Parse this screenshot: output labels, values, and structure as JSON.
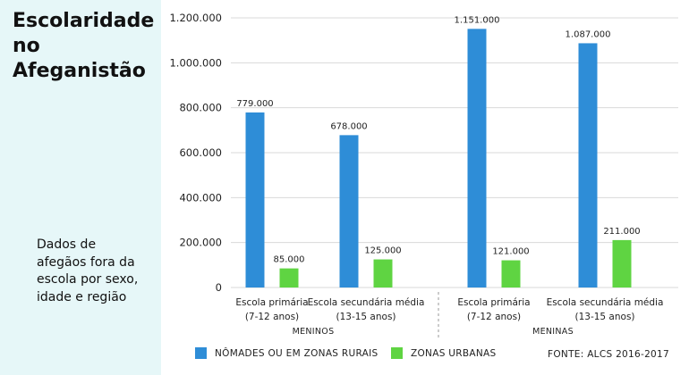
{
  "title": "Escolaridade no Afeganistão",
  "subtitle": "Dados de afegãos fora da escola por sexo, idade e região",
  "source": "FONTE: ALCS 2016-2017",
  "colors": {
    "series1": "#2e8dd7",
    "series2": "#5fd442",
    "background_panel": "#e6f7f8"
  },
  "chart_data": {
    "type": "bar",
    "ylim": [
      0,
      1200000
    ],
    "yticks": [
      {
        "value": 0,
        "label": "0"
      },
      {
        "value": 200000,
        "label": "200.000"
      },
      {
        "value": 400000,
        "label": "400.000"
      },
      {
        "value": 600000,
        "label": "600.000"
      },
      {
        "value": 800000,
        "label": "800.000"
      },
      {
        "value": 1000000,
        "label": "1.000.000"
      },
      {
        "value": 1200000,
        "label": "1.200.000"
      }
    ],
    "grid": true,
    "legend_position": "bottom",
    "groups": [
      {
        "name": "MENINOS",
        "categories": [
          {
            "line1": "Escola primária",
            "line2": "(7-12 anos)"
          },
          {
            "line1": "Escola secundária média",
            "line2": "(13-15 anos)"
          }
        ]
      },
      {
        "name": "MENINAS",
        "categories": [
          {
            "line1": "Escola primária",
            "line2": "(7-12 anos)"
          },
          {
            "line1": "Escola secundária média",
            "line2": "(13-15 anos)"
          }
        ]
      }
    ],
    "series": [
      {
        "name": "NÔMADES OU EM ZONAS RURAIS",
        "values": [
          779000,
          678000,
          1151000,
          1087000
        ],
        "labels": [
          "779.000",
          "678.000",
          "1.151.000",
          "1.087.000"
        ]
      },
      {
        "name": "ZONAS URBANAS",
        "values": [
          85000,
          125000,
          121000,
          211000
        ],
        "labels": [
          "85.000",
          "125.000",
          "121.000",
          "211.000"
        ]
      }
    ]
  }
}
